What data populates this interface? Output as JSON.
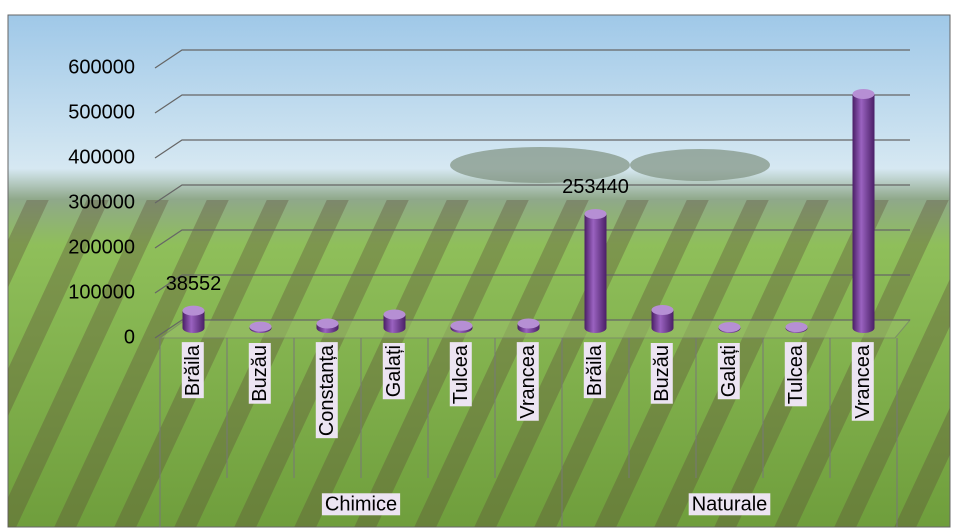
{
  "chart_data": {
    "type": "bar3d",
    "groups": [
      {
        "label": "Chimice",
        "categories": [
          "Brăila",
          "Buzău",
          "Constanța",
          "Galați",
          "Tulcea",
          "Vrancea"
        ],
        "values": [
          38552,
          3000,
          10000,
          30000,
          5000,
          10000
        ],
        "show_label": [
          true,
          false,
          false,
          false,
          false,
          false
        ]
      },
      {
        "label": "Naturale",
        "categories": [
          "Brăila",
          "Buzău",
          "Galați",
          "Tulcea",
          "Vrancea"
        ],
        "values": [
          253440,
          40000,
          2000,
          2000,
          520000
        ],
        "show_label": [
          true,
          false,
          false,
          false,
          false
        ]
      }
    ],
    "color": "#7b3f9e",
    "ylim": [
      0,
      600000
    ],
    "yticks": [
      0,
      100000,
      200000,
      300000,
      400000,
      500000,
      600000
    ],
    "grid": true
  }
}
